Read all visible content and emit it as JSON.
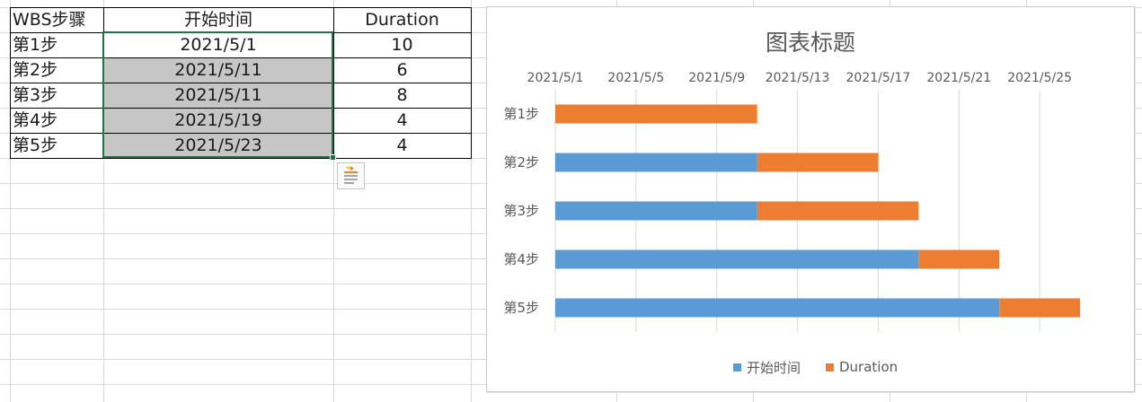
{
  "table": {
    "headers": [
      "WBS步骤",
      "开始时间",
      "Duration"
    ],
    "rows": [
      [
        "第1步",
        "2021/5/1",
        "10"
      ],
      [
        "第2步",
        "2021/5/11",
        "6"
      ],
      [
        "第3步",
        "2021/5/11",
        "8"
      ],
      [
        "第4步",
        "2021/5/19",
        "4"
      ],
      [
        "第5步",
        "2021/5/23",
        "4"
      ]
    ]
  },
  "chart_data": {
    "type": "bar",
    "orientation": "horizontal-stacked",
    "title": "图表标题",
    "categories": [
      "第1步",
      "第2步",
      "第3步",
      "第4步",
      "第5步"
    ],
    "x_ticks": [
      "2021/5/1",
      "2021/5/5",
      "2021/5/9",
      "2021/5/13",
      "2021/5/17",
      "2021/5/21",
      "2021/5/25"
    ],
    "xlim": [
      "2021/5/1",
      "2021/5/29"
    ],
    "x_axis_position": "top",
    "grid": true,
    "legend_position": "bottom",
    "series": [
      {
        "name": "开始时间",
        "color": "#5b9bd5",
        "values": [
          "2021/5/1",
          "2021/5/11",
          "2021/5/11",
          "2021/5/19",
          "2021/5/23"
        ]
      },
      {
        "name": "Duration",
        "color": "#ed7d31",
        "values": [
          10,
          6,
          8,
          4,
          4
        ]
      }
    ]
  },
  "colors": {
    "selection": "#217346",
    "shaded_cell": "#c6c6c6",
    "gridline": "#d9d9d9",
    "chart_gridline": "#d9d9d9",
    "chart_text": "#595959"
  }
}
